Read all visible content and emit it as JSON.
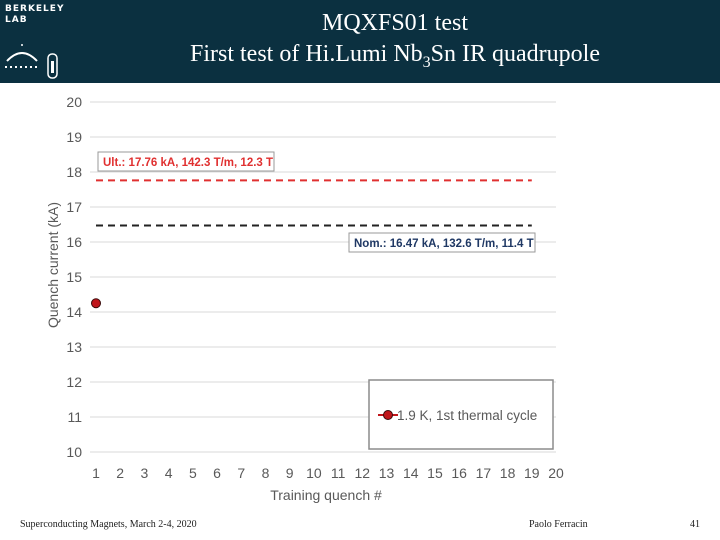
{
  "header": {
    "logo_text": "BERKELEY\nLAB",
    "title_line1": "MQXFS01 test",
    "title_line2_pre": "First test of Hi.Lumi Nb",
    "title_line2_sub": "3",
    "title_line2_post": "Sn IR quadrupole"
  },
  "footer": {
    "left": "Superconducting Magnets, March 2-4, 2020",
    "author": "Paolo Ferracin",
    "page": "41"
  },
  "colors": {
    "header_bg": "#0b3040",
    "ultimate": "#e03030",
    "nominal": "#222222",
    "marker": "#c0161b",
    "axis_text": "#595959",
    "grid": "#d9d9d9"
  },
  "chart_data": {
    "type": "scatter",
    "xlabel": "Training quench #",
    "ylabel": "Quench current (kA)",
    "xlim": [
      1,
      20
    ],
    "ylim": [
      10,
      20
    ],
    "x_ticks": [
      1,
      2,
      3,
      4,
      5,
      6,
      7,
      8,
      9,
      10,
      11,
      12,
      13,
      14,
      15,
      16,
      17,
      18,
      19,
      20
    ],
    "y_ticks": [
      10,
      11,
      12,
      13,
      14,
      15,
      16,
      17,
      18,
      19,
      20
    ],
    "grid": "horizontal",
    "legend_position": "bottom-right",
    "series": [
      {
        "name": "1.9 K, 1st thermal cycle",
        "x": [
          1
        ],
        "y": [
          14.25
        ]
      }
    ],
    "reference_lines": [
      {
        "label": "Ult.: 17.76 kA, 142.3 T/m, 12.3 T",
        "y": 17.76,
        "x_end": 19,
        "style": "dashed",
        "color": "#e03030"
      },
      {
        "label": "Nom.: 16.47 kA, 132.6 T/m, 11.4 T",
        "y": 16.47,
        "x_end": 19,
        "style": "dashed",
        "color": "#222222"
      }
    ]
  }
}
